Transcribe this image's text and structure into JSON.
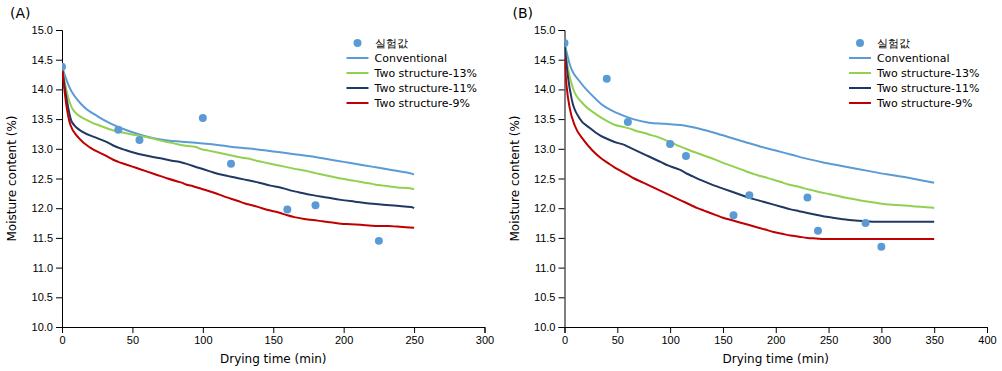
{
  "chart_data": [
    {
      "type": "line",
      "title": "(A)",
      "x_label": "Drying time (min)",
      "y_label": "Moisture content (%)",
      "xlim": [
        0,
        300
      ],
      "ylim": [
        10,
        15
      ],
      "xticks": [
        0,
        50,
        100,
        150,
        200,
        250,
        300
      ],
      "yticks": [
        {
          "value": 10,
          "label": "10.0"
        },
        10.5,
        {
          "value": 11,
          "label": "11.0"
        },
        11.5,
        {
          "value": 12,
          "label": "12.0"
        },
        12.5,
        {
          "value": 13,
          "label": "13.0"
        },
        13.5,
        {
          "value": 14,
          "label": "14.0"
        },
        14.5,
        {
          "value": 15,
          "label": "15.0"
        }
      ],
      "grid": false,
      "legend": "upper right",
      "series": [
        {
          "name": "실험값",
          "type": "scatter",
          "marker": "circle",
          "color": "#5B9BD5",
          "x": [
            0,
            40,
            55,
            100,
            120,
            160,
            180,
            225
          ],
          "values": [
            14.38,
            13.32,
            13.15,
            13.52,
            12.75,
            11.98,
            12.05,
            11.45
          ]
        },
        {
          "name": "Conventional",
          "type": "line",
          "line_style": "solid",
          "color": "#5B9BD5",
          "x": [
            0,
            5,
            15,
            25,
            35,
            45,
            55,
            65,
            75,
            85,
            95,
            105,
            115,
            125,
            135,
            145,
            155,
            165,
            175,
            185,
            195,
            205,
            215,
            225,
            235,
            245,
            250
          ],
          "values": [
            14.38,
            14.05,
            13.72,
            13.55,
            13.42,
            13.32,
            13.24,
            13.18,
            13.14,
            13.12,
            13.1,
            13.08,
            13.05,
            13.02,
            13.0,
            12.97,
            12.94,
            12.91,
            12.88,
            12.84,
            12.8,
            12.76,
            12.72,
            12.68,
            12.64,
            12.6,
            12.57
          ]
        },
        {
          "name": "Two structure-13%",
          "type": "line",
          "line_style": "solid",
          "color": "#92D050",
          "x": [
            0,
            3,
            8,
            18,
            28,
            35,
            38,
            42,
            48,
            55,
            60,
            68,
            78,
            88,
            95,
            98,
            102,
            108,
            118,
            128,
            135,
            138,
            142,
            148,
            158,
            168,
            175,
            178,
            182,
            188,
            198,
            208,
            215,
            218,
            222,
            228,
            238,
            248,
            250
          ],
          "values": [
            14.38,
            14.0,
            13.65,
            13.48,
            13.38,
            13.32,
            13.3,
            13.28,
            13.25,
            13.22,
            13.2,
            13.15,
            13.1,
            13.05,
            13.03,
            13.0,
            12.98,
            12.95,
            12.9,
            12.85,
            12.82,
            12.8,
            12.78,
            12.75,
            12.7,
            12.65,
            12.62,
            12.6,
            12.58,
            12.55,
            12.5,
            12.46,
            12.43,
            12.42,
            12.4,
            12.38,
            12.35,
            12.33,
            12.32
          ]
        },
        {
          "name": "Two structure-11%",
          "type": "line",
          "line_style": "solid",
          "color": "#1F3864",
          "x": [
            0,
            3,
            7,
            15,
            25,
            33,
            36,
            40,
            45,
            52,
            57,
            63,
            70,
            78,
            85,
            88,
            92,
            97,
            105,
            112,
            118,
            122,
            126,
            132,
            140,
            148,
            155,
            158,
            162,
            168,
            178,
            188,
            198,
            208,
            218,
            228,
            238,
            248,
            250
          ],
          "values": [
            14.38,
            13.88,
            13.45,
            13.28,
            13.18,
            13.1,
            13.06,
            13.02,
            12.98,
            12.93,
            12.9,
            12.87,
            12.84,
            12.8,
            12.77,
            12.75,
            12.72,
            12.68,
            12.62,
            12.57,
            12.54,
            12.52,
            12.5,
            12.47,
            12.43,
            12.38,
            12.35,
            12.33,
            12.3,
            12.27,
            12.22,
            12.18,
            12.14,
            12.11,
            12.08,
            12.06,
            12.04,
            12.02,
            12.0
          ]
        },
        {
          "name": "Two structure-9%",
          "type": "line",
          "line_style": "solid",
          "color": "#C00000",
          "x": [
            0,
            3,
            6,
            12,
            20,
            28,
            33,
            36,
            40,
            45,
            50,
            55,
            60,
            65,
            70,
            75,
            82,
            85,
            88,
            93,
            100,
            108,
            115,
            120,
            125,
            130,
            135,
            142,
            148,
            155,
            160,
            165,
            172,
            178,
            185,
            192,
            198,
            205,
            212,
            218,
            225,
            232,
            238,
            244,
            250
          ],
          "values": [
            14.38,
            13.75,
            13.4,
            13.18,
            13.02,
            12.92,
            12.86,
            12.82,
            12.78,
            12.74,
            12.7,
            12.66,
            12.62,
            12.58,
            12.54,
            12.5,
            12.45,
            12.43,
            12.4,
            12.37,
            12.32,
            12.26,
            12.2,
            12.16,
            12.12,
            12.08,
            12.05,
            12.0,
            11.96,
            11.92,
            11.88,
            11.85,
            11.82,
            11.8,
            11.78,
            11.76,
            11.74,
            11.73,
            11.72,
            11.71,
            11.7,
            11.7,
            11.69,
            11.68,
            11.67
          ]
        }
      ]
    },
    {
      "type": "line",
      "title": "(B)",
      "x_label": "Drying time (min)",
      "y_label": "Moisture content (%)",
      "xlim": [
        0,
        400
      ],
      "ylim": [
        10,
        15
      ],
      "xticks": [
        0,
        50,
        100,
        150,
        200,
        250,
        300,
        350,
        400
      ],
      "yticks": [
        {
          "value": 10,
          "label": "10.0"
        },
        10.5,
        {
          "value": 11,
          "label": "11.0"
        },
        11.5,
        {
          "value": 12,
          "label": "12.0"
        },
        12.5,
        {
          "value": 13,
          "label": "13.0"
        },
        13.5,
        {
          "value": 14,
          "label": "14.0"
        },
        14.5,
        {
          "value": 15,
          "label": "15.0"
        }
      ],
      "grid": false,
      "legend": "upper right",
      "series": [
        {
          "name": "실험값",
          "type": "scatter",
          "marker": "circle",
          "color": "#5B9BD5",
          "x": [
            0,
            40,
            60,
            100,
            115,
            160,
            175,
            230,
            240,
            285,
            300
          ],
          "values": [
            14.78,
            14.18,
            13.45,
            13.08,
            12.88,
            11.88,
            12.22,
            12.18,
            11.62,
            11.75,
            11.35
          ]
        },
        {
          "name": "Conventional",
          "type": "line",
          "line_style": "solid",
          "color": "#5B9BD5",
          "x": [
            0,
            5,
            15,
            25,
            35,
            50,
            65,
            80,
            95,
            110,
            125,
            140,
            155,
            170,
            185,
            200,
            215,
            230,
            245,
            260,
            275,
            290,
            305,
            320,
            335,
            350
          ],
          "values": [
            14.78,
            14.42,
            14.12,
            13.92,
            13.75,
            13.6,
            13.5,
            13.44,
            13.42,
            13.4,
            13.35,
            13.28,
            13.2,
            13.12,
            13.04,
            12.97,
            12.9,
            12.83,
            12.77,
            12.72,
            12.67,
            12.62,
            12.57,
            12.53,
            12.48,
            12.43
          ]
        },
        {
          "name": "Two structure-13%",
          "type": "line",
          "line_style": "solid",
          "color": "#92D050",
          "x": [
            0,
            3,
            8,
            18,
            30,
            40,
            48,
            55,
            62,
            68,
            75,
            82,
            88,
            95,
            102,
            108,
            115,
            122,
            130,
            138,
            145,
            152,
            160,
            168,
            175,
            182,
            190,
            198,
            205,
            212,
            220,
            228,
            235,
            242,
            250,
            258,
            265,
            272,
            280,
            288,
            295,
            302,
            310,
            318,
            325,
            332,
            340,
            348,
            350
          ],
          "values": [
            14.78,
            14.38,
            14.02,
            13.75,
            13.58,
            13.47,
            13.4,
            13.37,
            13.34,
            13.3,
            13.27,
            13.23,
            13.2,
            13.15,
            13.1,
            13.05,
            13.0,
            12.95,
            12.9,
            12.85,
            12.8,
            12.75,
            12.7,
            12.65,
            12.6,
            12.56,
            12.52,
            12.48,
            12.44,
            12.4,
            12.37,
            12.33,
            12.3,
            12.27,
            12.24,
            12.21,
            12.18,
            12.16,
            12.13,
            12.11,
            12.09,
            12.07,
            12.06,
            12.05,
            12.04,
            12.03,
            12.02,
            12.01,
            12.0
          ]
        },
        {
          "name": "Two structure-11%",
          "type": "line",
          "line_style": "solid",
          "color": "#1F3864",
          "x": [
            0,
            3,
            7,
            14,
            24,
            34,
            44,
            50,
            56,
            62,
            68,
            74,
            80,
            86,
            92,
            98,
            104,
            110,
            116,
            122,
            128,
            135,
            142,
            150,
            158,
            166,
            174,
            182,
            190,
            198,
            206,
            214,
            222,
            230,
            238,
            246,
            254,
            262,
            270,
            278,
            286,
            294,
            302,
            310,
            318,
            326,
            334,
            342,
            350
          ],
          "values": [
            14.78,
            14.25,
            13.82,
            13.52,
            13.35,
            13.22,
            13.14,
            13.1,
            13.07,
            13.02,
            12.97,
            12.92,
            12.87,
            12.82,
            12.77,
            12.72,
            12.68,
            12.64,
            12.58,
            12.53,
            12.48,
            12.43,
            12.38,
            12.33,
            12.28,
            12.23,
            12.18,
            12.14,
            12.1,
            12.06,
            12.02,
            11.98,
            11.95,
            11.92,
            11.89,
            11.86,
            11.84,
            11.82,
            11.8,
            11.79,
            11.78,
            11.77,
            11.77,
            11.77,
            11.77,
            11.77,
            11.77,
            11.77,
            11.77
          ]
        },
        {
          "name": "Two structure-9%",
          "type": "line",
          "line_style": "solid",
          "color": "#C00000",
          "x": [
            0,
            2,
            5,
            10,
            18,
            26,
            34,
            42,
            48,
            54,
            60,
            66,
            72,
            78,
            84,
            90,
            96,
            102,
            108,
            114,
            120,
            126,
            132,
            138,
            144,
            150,
            158,
            166,
            174,
            182,
            190,
            198,
            206,
            214,
            222,
            230,
            238,
            246,
            254,
            262,
            270,
            278,
            286,
            294,
            302,
            310,
            318,
            326,
            334,
            342,
            350
          ],
          "values": [
            14.52,
            14.05,
            13.68,
            13.38,
            13.15,
            12.98,
            12.85,
            12.75,
            12.68,
            12.62,
            12.56,
            12.5,
            12.45,
            12.4,
            12.35,
            12.3,
            12.25,
            12.2,
            12.15,
            12.1,
            12.05,
            12.0,
            11.96,
            11.92,
            11.88,
            11.84,
            11.8,
            11.76,
            11.72,
            11.68,
            11.64,
            11.6,
            11.57,
            11.54,
            11.52,
            11.5,
            11.49,
            11.48,
            11.48,
            11.48,
            11.48,
            11.48,
            11.48,
            11.48,
            11.48,
            11.48,
            11.48,
            11.48,
            11.48,
            11.48,
            11.48
          ]
        }
      ]
    }
  ]
}
